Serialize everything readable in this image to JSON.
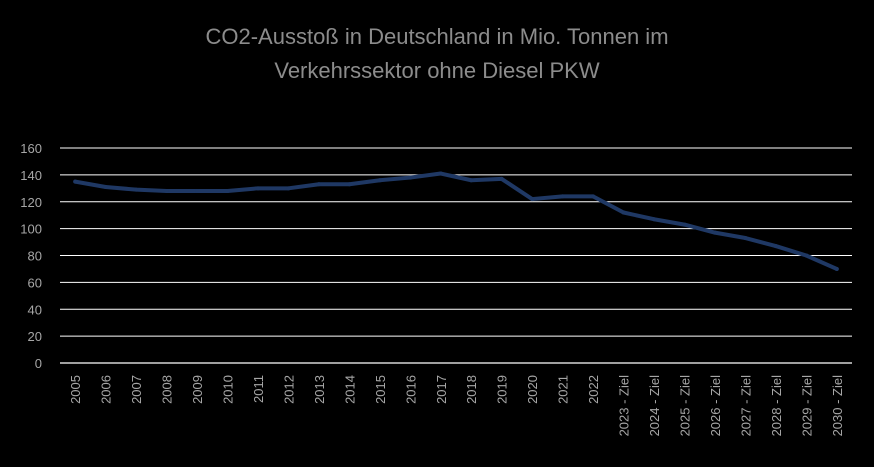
{
  "title_line1": "CO2-Ausstoß in Deutschland in Mio. Tonnen im",
  "title_line2": "Verkehrssektor ohne Diesel PKW",
  "colors": {
    "background": "#000000",
    "line": "#1f3864",
    "grid": "#ffffff",
    "text": "#a6a6a6",
    "title": "#8c8c8c"
  },
  "chart_data": {
    "type": "line",
    "title": "CO2-Ausstoß in Deutschland in Mio. Tonnen im Verkehrssektor ohne Diesel PKW",
    "xlabel": "",
    "ylabel": "",
    "ylim": [
      0,
      160
    ],
    "yticks": [
      0,
      20,
      40,
      60,
      80,
      100,
      120,
      140,
      160
    ],
    "grid": true,
    "legend": "none",
    "categories": [
      "2005",
      "2006",
      "2007",
      "2008",
      "2009",
      "2010",
      "2011",
      "2012",
      "2013",
      "2014",
      "2015",
      "2016",
      "2017",
      "2018",
      "2019",
      "2020",
      "2021",
      "2022",
      "2023 - Ziel",
      "2024 - Ziel",
      "2025 - Ziel",
      "2026 - Ziel",
      "2027 - Ziel",
      "2028 - Ziel",
      "2029 - Ziel",
      "2030 - Ziel"
    ],
    "series": [
      {
        "values": [
          135,
          131,
          129,
          128,
          128,
          128,
          130,
          130,
          133,
          133,
          136,
          138,
          141,
          136,
          137,
          122,
          124,
          124,
          112,
          107,
          103,
          97,
          93,
          87,
          80,
          70
        ]
      }
    ]
  }
}
